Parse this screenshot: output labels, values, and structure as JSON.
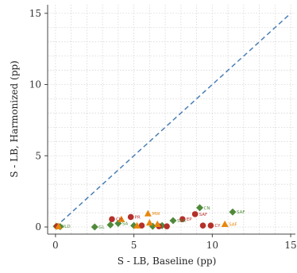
{
  "chart_data": {
    "type": "scatter",
    "xlabel": "S - LB, Baseline (pp)",
    "ylabel": "S - LB, Harmonized (pp)",
    "xlim": [
      -0.5,
      15.3
    ],
    "ylim": [
      -0.5,
      15.6
    ],
    "xticks": [
      0,
      5,
      10,
      15
    ],
    "yticks": [
      0,
      5,
      10,
      15
    ],
    "grid": true,
    "reference_line": {
      "style": "dashed",
      "color": "#4a7fb5",
      "from": [
        0,
        0
      ],
      "to": [
        15,
        15
      ]
    },
    "marker_colors": {
      "diamond": "#4f8a3a",
      "circle": "#b5302a",
      "triangle": "#e8860c"
    },
    "series": [
      {
        "marker": "diamond",
        "points": [
          {
            "x": 0.05,
            "y": 0.05,
            "label": "WLD"
          },
          {
            "x": 0.3,
            "y": 0.02,
            "label": ""
          },
          {
            "x": 2.5,
            "y": 0.0,
            "label": "GL"
          },
          {
            "x": 3.5,
            "y": 0.15,
            "label": ""
          },
          {
            "x": 4.0,
            "y": 0.25,
            "label": "SA"
          },
          {
            "x": 5.0,
            "y": 0.1,
            "label": ""
          },
          {
            "x": 6.2,
            "y": 0.05,
            "label": ""
          },
          {
            "x": 6.8,
            "y": 0.1,
            "label": ""
          },
          {
            "x": 7.5,
            "y": 0.45,
            "label": "SSA"
          },
          {
            "x": 9.2,
            "y": 1.35,
            "label": "CN"
          },
          {
            "x": 11.3,
            "y": 1.05,
            "label": "SAF"
          }
        ]
      },
      {
        "marker": "circle",
        "points": [
          {
            "x": 0.1,
            "y": 0.05,
            "label": ""
          },
          {
            "x": 3.6,
            "y": 0.55,
            "label": "CH"
          },
          {
            "x": 4.8,
            "y": 0.7,
            "label": "PR"
          },
          {
            "x": 5.5,
            "y": 0.1,
            "label": ""
          },
          {
            "x": 6.6,
            "y": 0.05,
            "label": ""
          },
          {
            "x": 7.1,
            "y": 0.05,
            "label": ""
          },
          {
            "x": 8.1,
            "y": 0.55,
            "label": "EP"
          },
          {
            "x": 8.9,
            "y": 0.9,
            "label": "SAF"
          },
          {
            "x": 9.4,
            "y": 0.1,
            "label": ""
          },
          {
            "x": 9.9,
            "y": 0.1,
            "label": "CY"
          }
        ]
      },
      {
        "marker": "triangle",
        "points": [
          {
            "x": 0.2,
            "y": 0.05,
            "label": ""
          },
          {
            "x": 4.2,
            "y": 0.55,
            "label": ""
          },
          {
            "x": 5.2,
            "y": 0.1,
            "label": ""
          },
          {
            "x": 5.9,
            "y": 0.95,
            "label": "MW"
          },
          {
            "x": 6.0,
            "y": 0.3,
            "label": ""
          },
          {
            "x": 6.5,
            "y": 0.2,
            "label": ""
          },
          {
            "x": 10.8,
            "y": 0.2,
            "label": "SAF"
          }
        ]
      }
    ]
  }
}
